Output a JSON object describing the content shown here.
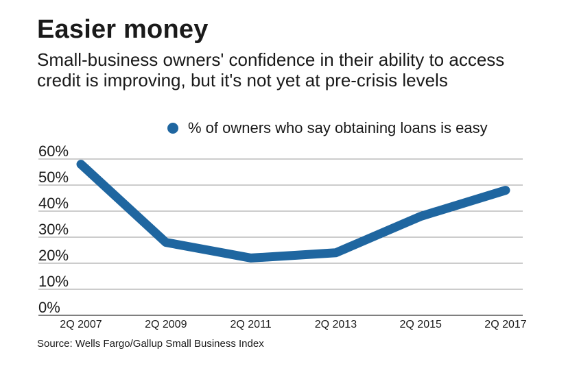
{
  "header": {
    "title": "Easier money",
    "subtitle": "Small-business owners' confidence in their ability to access credit is improving, but it's not yet at pre-crisis levels"
  },
  "source": "Source: Wells Fargo/Gallup Small Business Index",
  "chart_data": {
    "type": "line",
    "title": "Easier money",
    "subtitle": "Small-business owners' confidence in their ability to access credit is improving, but it's not yet at pre-crisis levels",
    "xlabel": "",
    "ylabel": "",
    "categories": [
      "2Q 2007",
      "2Q 2009",
      "2Q 2011",
      "2Q 2013",
      "2Q 2015",
      "2Q 2017"
    ],
    "series": [
      {
        "name": "% of owners who say obtaining loans is easy",
        "color": "#1f66a0",
        "x": [
          0,
          0.5,
          1,
          1.5,
          2,
          2.5,
          3,
          3.5,
          4,
          4.5,
          5
        ],
        "values": [
          58,
          43,
          28,
          25,
          22,
          23,
          24,
          31,
          38,
          43,
          48
        ]
      }
    ],
    "yticks": [
      0,
      10,
      20,
      30,
      40,
      50,
      60
    ],
    "ytick_labels": [
      "0%",
      "10%",
      "20%",
      "30%",
      "40%",
      "50%",
      "60%"
    ],
    "ylim": [
      0,
      60
    ],
    "grid": true,
    "legend": "top"
  }
}
